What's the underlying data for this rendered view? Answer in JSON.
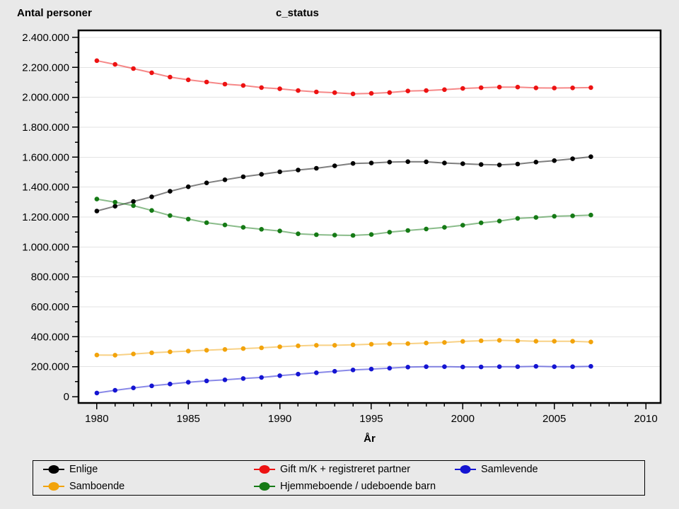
{
  "header": {
    "left_title": "Antal personer",
    "right_title": "c_status"
  },
  "chart_data": {
    "type": "line",
    "title_left": "Antal personer",
    "title_right": "c_status",
    "xlabel": "År",
    "ylabel": "Antal personer",
    "grid": "horizontal-major",
    "legend_position": "bottom",
    "plot_bg": "#ffffff",
    "page_bg": "#e9e9e9",
    "grid_color": "#e3e3e3",
    "frame_color": "#000000",
    "xlim": [
      1979,
      2010.81
    ],
    "ylim": [
      -42500,
      2447000
    ],
    "x_ticks": {
      "major": [
        1980,
        1985,
        1990,
        1995,
        2000,
        2005,
        2010
      ],
      "major_labels": [
        "1980",
        "1985",
        "1990",
        "1995",
        "2000",
        "2005",
        "2010"
      ],
      "minor_step": 1,
      "minor_from": 1980,
      "minor_to": 2010
    },
    "y_ticks": {
      "major_step": 200000,
      "minor_step": 100000,
      "min": 0,
      "max": 2400000,
      "major_labels": [
        "0",
        "200.000",
        "400.000",
        "600.000",
        "800.000",
        "1.000.000",
        "1.200.000",
        "1.400.000",
        "1.600.000",
        "1.800.000",
        "2.000.000",
        "2.200.000",
        "2.400.000"
      ]
    },
    "x": [
      1980,
      1981,
      1982,
      1983,
      1984,
      1985,
      1986,
      1987,
      1988,
      1989,
      1990,
      1991,
      1992,
      1993,
      1994,
      1995,
      1996,
      1997,
      1998,
      1999,
      2000,
      2001,
      2002,
      2003,
      2004,
      2005,
      2006,
      2007
    ],
    "series": [
      {
        "name": "Enlige",
        "color": "#000000",
        "values": [
          1240000,
          1272000,
          1304000,
          1335000,
          1372000,
          1402000,
          1428000,
          1449000,
          1469000,
          1485000,
          1502000,
          1514000,
          1526000,
          1542000,
          1558000,
          1561000,
          1567000,
          1570000,
          1569000,
          1561000,
          1556000,
          1551000,
          1548000,
          1554000,
          1567000,
          1577000,
          1589000,
          1603000
        ]
      },
      {
        "name": "Gift m/K + registreret partner",
        "color": "#ed1212",
        "values": [
          2245000,
          2220000,
          2192000,
          2164000,
          2135000,
          2117000,
          2102000,
          2088000,
          2079000,
          2065000,
          2057000,
          2045000,
          2036000,
          2031000,
          2023000,
          2026000,
          2032000,
          2042000,
          2045000,
          2051000,
          2059000,
          2064000,
          2068000,
          2068000,
          2063000,
          2062000,
          2063000,
          2065000
        ]
      },
      {
        "name": "Samlevende",
        "color": "#1414d2",
        "values": [
          24000,
          42000,
          58000,
          72000,
          84000,
          96000,
          105000,
          112000,
          121000,
          128000,
          140000,
          150000,
          159000,
          169000,
          178000,
          184000,
          190000,
          197000,
          200000,
          200000,
          198000,
          198000,
          200000,
          200000,
          202000,
          200000,
          200000,
          202000
        ]
      },
      {
        "name": "Samboende",
        "color": "#f2a30b",
        "values": [
          278000,
          277000,
          285000,
          293000,
          299000,
          304000,
          310000,
          315000,
          321000,
          326000,
          333000,
          339000,
          343000,
          343000,
          346000,
          350000,
          353000,
          354000,
          358000,
          362000,
          369000,
          373000,
          376000,
          373000,
          370000,
          370000,
          370000,
          365000
        ]
      },
      {
        "name": "Hjemmeboende / udeboende barn",
        "color": "#157a15",
        "values": [
          1320000,
          1299000,
          1276000,
          1244000,
          1210000,
          1186000,
          1162000,
          1147000,
          1131000,
          1118000,
          1107000,
          1088000,
          1082000,
          1079000,
          1077000,
          1083000,
          1099000,
          1110000,
          1120000,
          1131000,
          1145000,
          1161000,
          1173000,
          1191000,
          1197000,
          1205000,
          1208000,
          1213000
        ]
      }
    ]
  }
}
